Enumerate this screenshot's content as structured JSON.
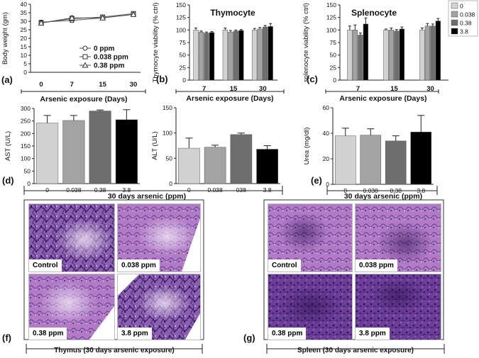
{
  "chart_data": [
    {
      "panel": "(a)",
      "type": "line",
      "x": [
        "0",
        "7",
        "15",
        "30"
      ],
      "ylabel": "Body weight (gm)",
      "ylim": [
        0,
        40
      ],
      "yticks": [
        "0",
        "5",
        "10",
        "15",
        "20",
        "25",
        "30",
        "35",
        "40"
      ],
      "series": [
        {
          "name": "0 ppm",
          "values": [
            29.5,
            30.5,
            32,
            34
          ],
          "marker": "circle"
        },
        {
          "name": "0.038 ppm",
          "values": [
            29,
            31.5,
            32.5,
            34.5
          ],
          "marker": "square"
        },
        {
          "name": "0.38 ppm",
          "values": [
            29,
            32,
            32,
            34
          ],
          "marker": "triangle"
        }
      ],
      "xlabel": "Arsenic exposure (Days)"
    },
    {
      "panel": "(b)",
      "type": "bar",
      "title": "Thymocyte",
      "categories": [
        "7",
        "15",
        "30"
      ],
      "ylabel": "Thymocyte viability (% ctrl)",
      "ylim": [
        0,
        150
      ],
      "yticks": [
        "0",
        "25",
        "50",
        "75",
        "100",
        "125",
        "150"
      ],
      "series": [
        {
          "name": "0",
          "values": [
            100,
            100,
            100
          ],
          "err": [
            4,
            4,
            3
          ]
        },
        {
          "name": "0.038",
          "values": [
            96,
            96,
            102
          ],
          "err": [
            2,
            3,
            3
          ]
        },
        {
          "name": "0.38",
          "values": [
            94,
            98,
            106
          ],
          "err": [
            2,
            2,
            3
          ]
        },
        {
          "name": "3.8",
          "values": [
            95,
            99,
            107
          ],
          "err": [
            2,
            2,
            6
          ]
        }
      ],
      "xlabel": "Arsenic exposure (Days)"
    },
    {
      "panel": "(c)",
      "type": "bar",
      "title": "Splenocyte",
      "categories": [
        "7",
        "15",
        "30"
      ],
      "ylabel": "splenocyte viability (% ctrl)",
      "ylim": [
        0,
        150
      ],
      "yticks": [
        "0",
        "25",
        "50",
        "75",
        "100",
        "125",
        "150"
      ],
      "series": [
        {
          "name": "0",
          "values": [
            100,
            100,
            100
          ],
          "err": [
            8,
            2,
            4
          ]
        },
        {
          "name": "0.038",
          "values": [
            100,
            100,
            108
          ],
          "err": [
            10,
            4,
            5
          ]
        },
        {
          "name": "0.38",
          "values": [
            90,
            98,
            108
          ],
          "err": [
            4,
            3,
            4
          ]
        },
        {
          "name": "3.8",
          "values": [
            112,
            102,
            118
          ],
          "err": [
            12,
            4,
            5
          ]
        }
      ],
      "legend": {
        "placement": "top-right",
        "entries": [
          "0",
          "0.038",
          "0.38",
          "3.8"
        ]
      },
      "xlabel": "Arsenic exposure (Days)"
    },
    {
      "panel": "(d)",
      "type": "bar",
      "categories": [
        "0",
        "0.038",
        "0.38",
        "3.8"
      ],
      "ylabel": "AST (U/L)",
      "ylim": [
        0,
        300
      ],
      "yticks": [
        "0",
        "50",
        "100",
        "150",
        "200",
        "250",
        "300"
      ],
      "values": [
        242,
        252,
        290,
        255
      ],
      "err": [
        30,
        20,
        4,
        40
      ]
    },
    {
      "panel": "",
      "type": "bar",
      "categories": [
        "0",
        "0.038",
        "038",
        "3.8"
      ],
      "ylabel": "ALT (U/L)",
      "ylim": [
        0,
        150
      ],
      "yticks": [
        "0",
        "50",
        "100",
        "150"
      ],
      "values": [
        70,
        72,
        97,
        68
      ],
      "err": [
        20,
        4,
        3,
        7
      ]
    },
    {
      "panel": "(e)",
      "type": "bar",
      "categories": [
        "0",
        "0.038",
        "0.38",
        "3.8"
      ],
      "ylabel": "Urea (mg/dl)",
      "ylim": [
        0,
        60
      ],
      "yticks": [
        "0",
        "20",
        "40",
        "60"
      ],
      "values": [
        38,
        38.5,
        34,
        41
      ],
      "err": [
        6,
        5,
        4,
        13
      ]
    }
  ],
  "colors": {
    "ctrl": "#d2d2d2",
    "low": "#a3a3a3",
    "mid": "#6e6e6e",
    "high": "#000000",
    "tissue_dark": "#5a2f86",
    "tissue_light": "#c9a6dc"
  },
  "shared_xlabel_blood": "30 days arsenic  (ppm)",
  "shared_xlabel_urea": "30 days arsenic  (ppm)",
  "histology": {
    "thymus": {
      "panel": "(f)",
      "caption": "Thymus (30 days arsenic exposure)",
      "images": [
        "Control",
        "0.038 ppm",
        "0.38 ppm",
        "3.8 ppm"
      ]
    },
    "spleen": {
      "panel": "(g)",
      "caption": "Spleen (30 days arsenic exposure)",
      "images": [
        "Control",
        "0.038 ppm",
        "0.38 ppm",
        "3.8 ppm"
      ]
    }
  }
}
